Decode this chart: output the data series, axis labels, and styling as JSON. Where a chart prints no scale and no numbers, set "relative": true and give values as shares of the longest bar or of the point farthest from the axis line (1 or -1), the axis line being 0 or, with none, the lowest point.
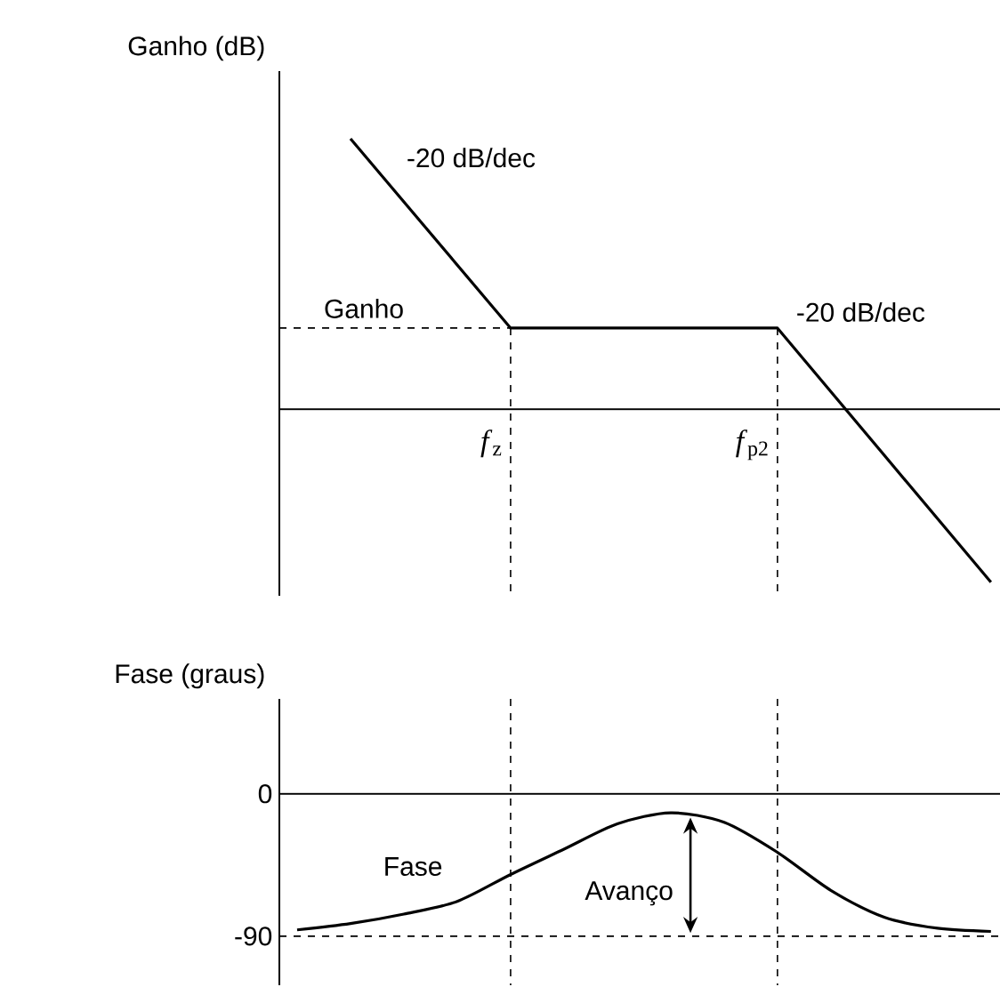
{
  "chart_data": [
    {
      "type": "line",
      "ylabel": "Ganho (dB)",
      "relative": true,
      "tick_labels": false,
      "color": "#000000",
      "line_style": "solid",
      "categories": [
        null,
        null,
        null,
        null,
        null,
        null,
        null,
        null,
        null,
        null,
        null,
        null,
        null,
        null
      ],
      "values": [
        null,
        1,
        null,
        null,
        0.3,
        null,
        null,
        null,
        null,
        0.3,
        null,
        null,
        null,
        -0.64
      ],
      "ref_lines": [
        {
          "axis": "y",
          "value": 0.3,
          "label": "Ganho",
          "line_style": "dashed"
        }
      ],
      "annotations": [
        "-20 dB/dec",
        "-20 dB/dec",
        "*f*$_{z}$",
        "*f*$_{p2}$"
      ]
    },
    {
      "type": "line",
      "ylabel": "Fase (graus)",
      "tick_labels": "y",
      "color": "#000000",
      "line_style": "solid",
      "categories": [
        null,
        null,
        null,
        null,
        null,
        null,
        null,
        null,
        null,
        null,
        null,
        null,
        null,
        null
      ],
      "values": [
        -86,
        -82,
        -76,
        -68,
        -51,
        -35,
        -19,
        -12,
        -18,
        -37,
        -61,
        -78,
        -85,
        -87
      ],
      "ylim": [
        -121,
        60
      ],
      "yticks": [
        0,
        -90
      ],
      "ref_lines": [
        {
          "axis": "y",
          "value": -90,
          "line_style": "dashed"
        }
      ],
      "annotations": [
        "Fase",
        "Avanço"
      ]
    }
  ]
}
